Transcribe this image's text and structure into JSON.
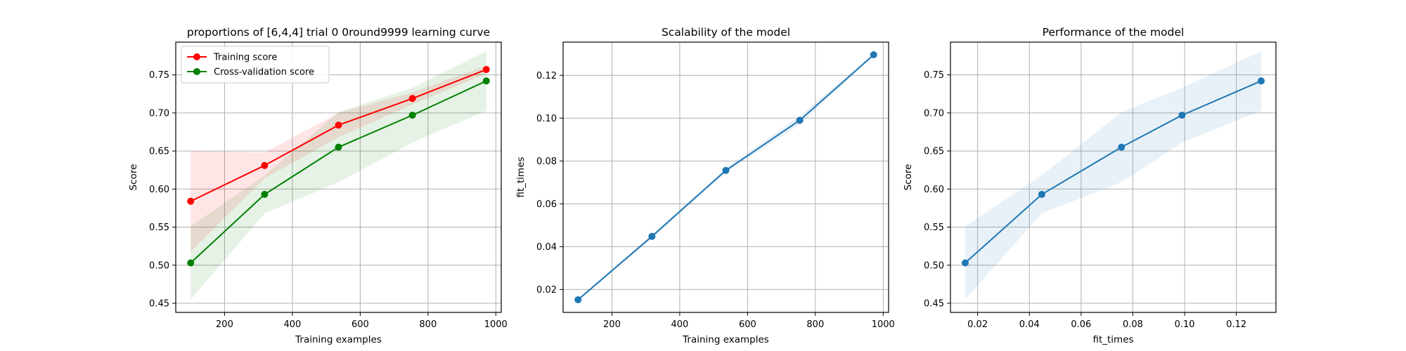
{
  "chart_data": [
    {
      "type": "line",
      "title": "proportions of [6,4,4] trial 0 0round9999 learning curve",
      "xlabel": "Training examples",
      "ylabel": "Score",
      "xlim": [
        56,
        1016
      ],
      "ylim": [
        0.438,
        0.793
      ],
      "xticks": [
        200,
        400,
        600,
        800,
        1000
      ],
      "yticks": [
        0.45,
        0.5,
        0.55,
        0.6,
        0.65,
        0.7,
        0.75
      ],
      "grid": true,
      "legend_position": "top-left",
      "series": [
        {
          "name": "Training score",
          "color": "#ff0000",
          "x": [
            100,
            318,
            536,
            754,
            972
          ],
          "y": [
            0.584,
            0.631,
            0.684,
            0.719,
            0.757
          ],
          "band_lower": [
            0.518,
            0.614,
            0.668,
            0.711,
            0.752
          ],
          "band_upper": [
            0.65,
            0.648,
            0.7,
            0.727,
            0.762
          ]
        },
        {
          "name": "Cross-validation score",
          "color": "#008000",
          "x": [
            100,
            318,
            536,
            754,
            972
          ],
          "y": [
            0.503,
            0.593,
            0.655,
            0.697,
            0.742
          ],
          "band_lower": [
            0.455,
            0.568,
            0.609,
            0.661,
            0.703
          ],
          "band_upper": [
            0.551,
            0.618,
            0.701,
            0.733,
            0.781
          ]
        }
      ]
    },
    {
      "type": "line",
      "title": "Scalability of the model",
      "xlabel": "Training examples",
      "ylabel": "fit_times",
      "xlim": [
        56,
        1016
      ],
      "ylim": [
        0.0093,
        0.1355
      ],
      "xticks": [
        200,
        400,
        600,
        800,
        1000
      ],
      "yticks": [
        0.02,
        0.04,
        0.06,
        0.08,
        0.1,
        0.12
      ],
      "grid": true,
      "series": [
        {
          "color": "#1f77b4",
          "x": [
            100,
            318,
            536,
            754,
            972
          ],
          "y": [
            0.0152,
            0.0448,
            0.0756,
            0.099,
            0.1296
          ],
          "band_lower": [
            0.0147,
            0.0438,
            0.0746,
            0.097,
            0.1291
          ],
          "band_upper": [
            0.0157,
            0.0458,
            0.0766,
            0.101,
            0.1301
          ]
        }
      ]
    },
    {
      "type": "line",
      "title": "Performance of the model",
      "xlabel": "fit_times",
      "ylabel": "Score",
      "xlim": [
        0.0095,
        0.1353
      ],
      "ylim": [
        0.438,
        0.793
      ],
      "xticks": [
        0.02,
        0.04,
        0.06,
        0.08,
        0.1,
        0.12
      ],
      "yticks": [
        0.45,
        0.5,
        0.55,
        0.6,
        0.65,
        0.7,
        0.75
      ],
      "grid": true,
      "series": [
        {
          "color": "#1f77b4",
          "x": [
            0.0152,
            0.0448,
            0.0756,
            0.099,
            0.1296
          ],
          "y": [
            0.503,
            0.593,
            0.655,
            0.697,
            0.742
          ],
          "band_lower": [
            0.455,
            0.568,
            0.609,
            0.661,
            0.703
          ],
          "band_upper": [
            0.551,
            0.618,
            0.701,
            0.733,
            0.781
          ]
        }
      ]
    }
  ]
}
